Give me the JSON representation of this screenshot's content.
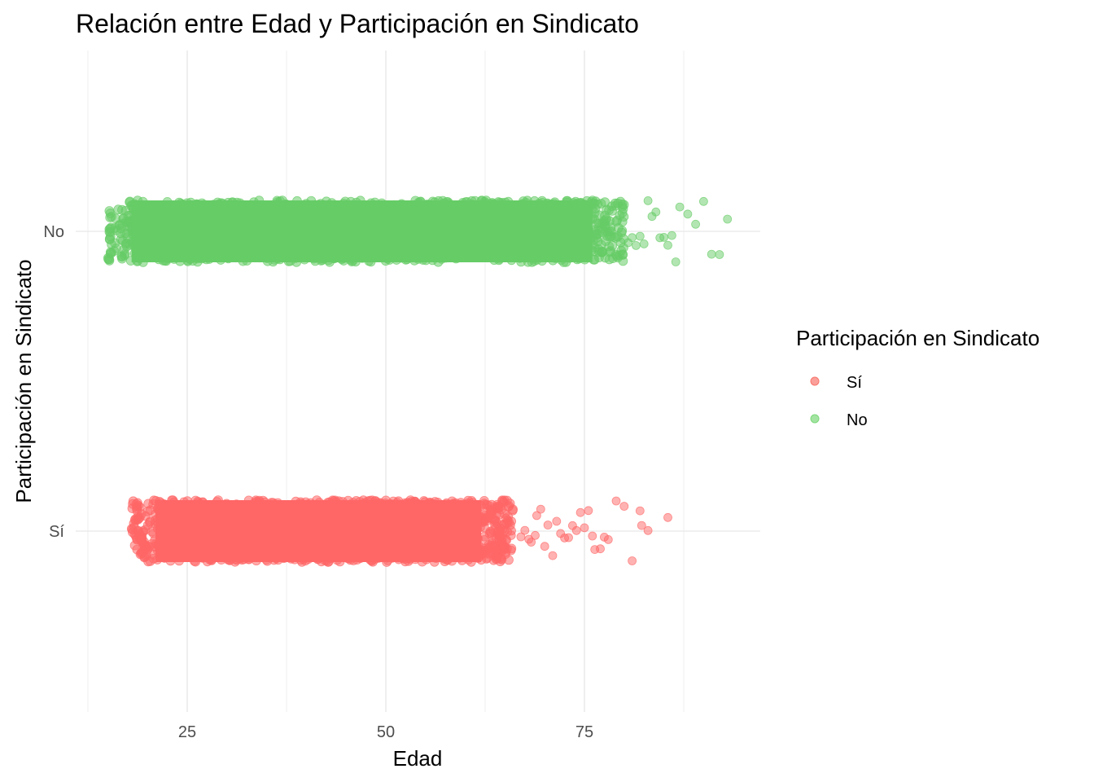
{
  "chart_data": {
    "type": "scatter",
    "title": "Relación entre Edad y Participación en Sindicato",
    "xlabel": "Edad",
    "ylabel": "Participación en Sindicato",
    "xlim": [
      12,
      97
    ],
    "x_ticks": [
      25,
      50,
      75
    ],
    "y_categories": [
      "Sí",
      "No"
    ],
    "jitter": "vertical jitter within each category band",
    "grid": true,
    "legend": {
      "title": "Participación en Sindicato",
      "position": "right",
      "entries": [
        {
          "label": "Sí",
          "color": "#F8766D"
        },
        {
          "label": "No",
          "color": "#7CD87A"
        }
      ]
    },
    "series": [
      {
        "name": "Sí",
        "color": "#FF6666",
        "category": "Sí",
        "dense_range": [
          18,
          66
        ],
        "sparse_points": [
          67,
          67.5,
          68,
          68.3,
          68.8,
          69,
          69.5,
          70,
          70.4,
          71,
          71.5,
          72,
          72.5,
          73,
          73.5,
          74,
          74.5,
          75,
          75.5,
          76,
          76.3,
          77,
          77.5,
          78,
          79,
          80,
          81,
          82,
          82.2,
          83,
          85.5
        ]
      },
      {
        "name": "No",
        "color": "#66CC66",
        "category": "No",
        "dense_range": [
          15,
          80
        ],
        "sparse_points": [
          80.5,
          81,
          81.5,
          82,
          82.5,
          83,
          83.5,
          84,
          84.5,
          85,
          85.5,
          86,
          86.5,
          87,
          88,
          89,
          90,
          91,
          92,
          93
        ]
      }
    ]
  }
}
